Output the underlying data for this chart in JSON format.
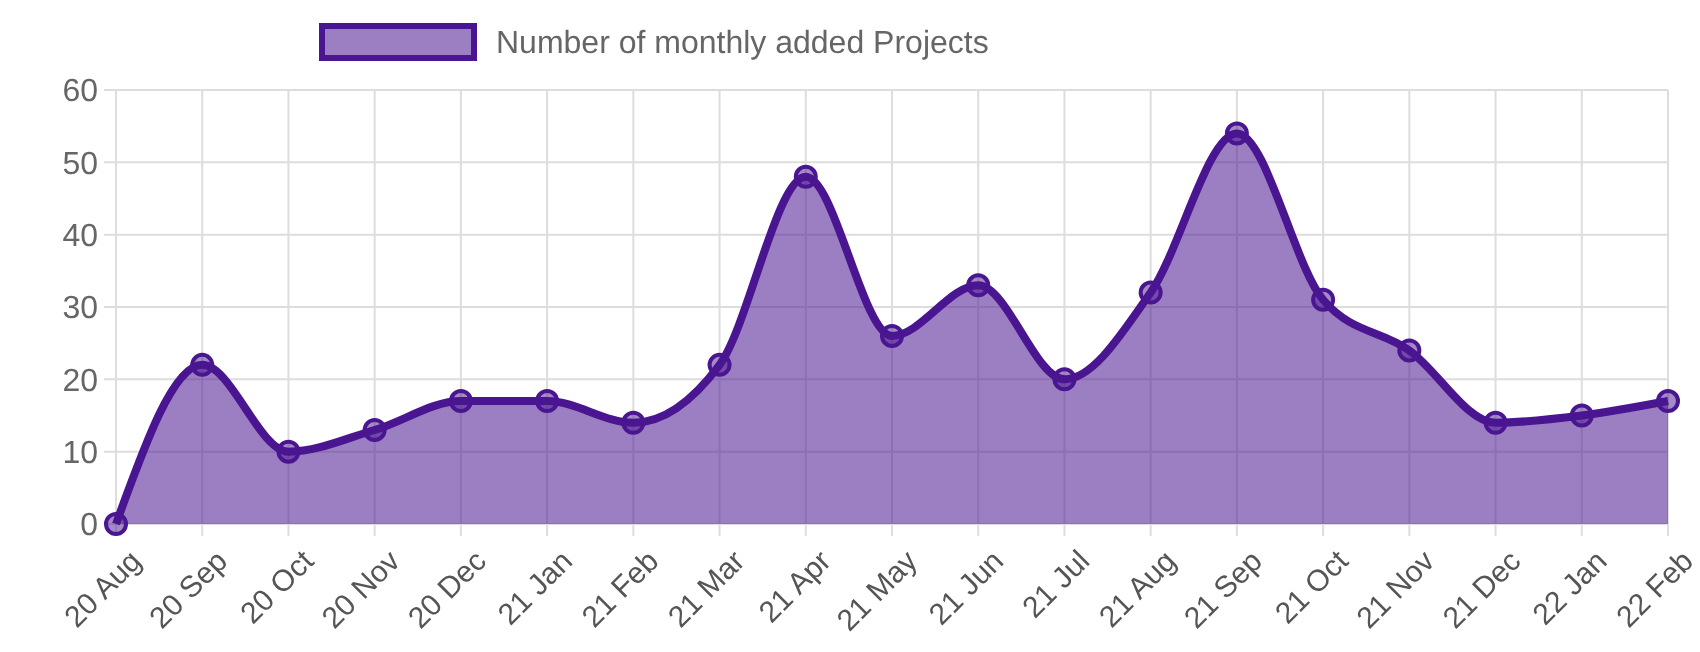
{
  "chart_data": {
    "type": "area",
    "categories": [
      "20 Aug",
      "20 Sep",
      "20 Oct",
      "20 Nov",
      "20 Dec",
      "21 Jan",
      "21 Feb",
      "21 Mar",
      "21 Apr",
      "21 May",
      "21 Jun",
      "21 Jul",
      "21 Aug",
      "21 Sep",
      "21 Oct",
      "21 Nov",
      "21 Dec",
      "22 Jan",
      "22 Feb"
    ],
    "series": [
      {
        "name": "Number of monthly added Projects",
        "color": "#4a1590",
        "values": [
          0,
          22,
          10,
          13,
          17,
          17,
          14,
          22,
          48,
          26,
          33,
          20,
          32,
          54,
          31,
          24,
          14,
          15,
          17
        ]
      }
    ],
    "ylim": [
      0,
      60
    ],
    "yticks": [
      0,
      10,
      20,
      30,
      40,
      50,
      60
    ],
    "grid": true,
    "legend": "top",
    "marker": "circle",
    "line_style": "solid"
  }
}
